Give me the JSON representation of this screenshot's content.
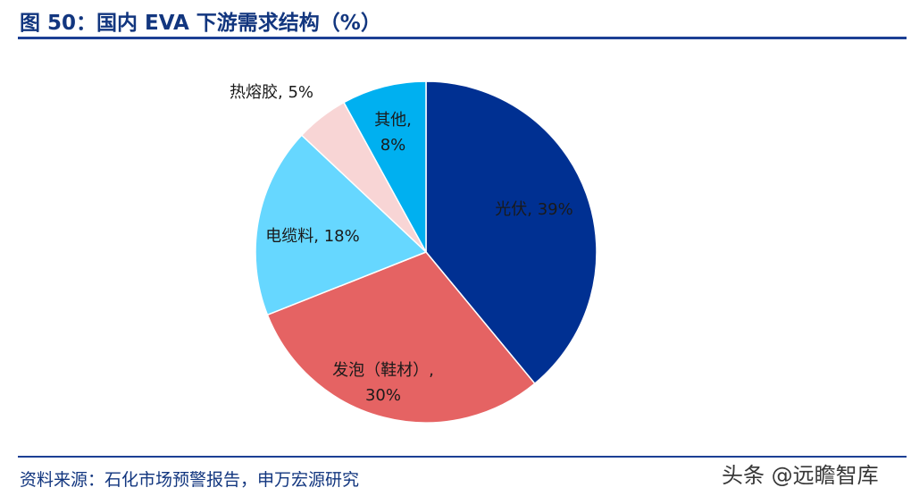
{
  "header": {
    "title": "图 50：国内 EVA 下游需求结构（%）"
  },
  "footer": {
    "source": "资料来源：石化市场预警报告，申万宏源研究"
  },
  "watermark": {
    "text": "头条 @远瞻智库"
  },
  "chart_data": {
    "type": "pie",
    "title": "图 50：国内 EVA 下游需求结构（%）",
    "start": "12 o'clock",
    "direction": "clockwise",
    "slices": [
      {
        "label": "光伏",
        "value": 39,
        "value_label": "39%",
        "color": "#003092"
      },
      {
        "label": "发泡（鞋材）",
        "value": 30,
        "value_label": "30%",
        "color": "#e56363"
      },
      {
        "label": "电缆料",
        "value": 18,
        "value_label": "18%",
        "color": "#66d7ff"
      },
      {
        "label": "热熔胶",
        "value": 5,
        "value_label": "5%",
        "color": "#f8d5d5"
      },
      {
        "label": "其他",
        "value": 8,
        "value_label": "8%",
        "color": "#00b0f0"
      }
    ]
  }
}
